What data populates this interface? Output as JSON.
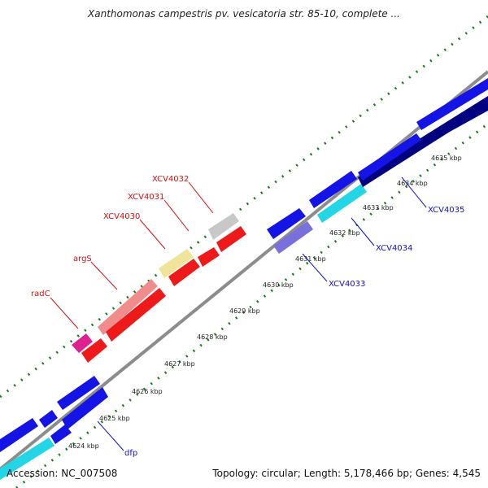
{
  "title": "Xanthomonas campestris pv. vesicatoria str. 85-10, complete ...",
  "footer": {
    "accession": "Accession: NC_007508",
    "summary": "Topology: circular; Length: 5,178,466 bp; Genes: 4,545"
  },
  "colors": {
    "backbone": "#8c8c8c",
    "tick": "#1a7a1a",
    "forward_label": "#d01010",
    "reverse_label": "#1010c8"
  },
  "ticks": [
    {
      "label": "4624 kbp"
    },
    {
      "label": "4625 kbp"
    },
    {
      "label": "4626 kbp"
    },
    {
      "label": "4627 kbp"
    },
    {
      "label": "4628 kbp"
    },
    {
      "label": "4629 kbp"
    },
    {
      "label": "4630 kbp"
    },
    {
      "label": "4631 kbp"
    },
    {
      "label": "4632 kbp"
    },
    {
      "label": "4633 kbp"
    },
    {
      "label": "4634 kbp"
    },
    {
      "label": "4635 kbp"
    }
  ],
  "gene_labels": [
    {
      "name": "radC",
      "strand": "forward"
    },
    {
      "name": "argS",
      "strand": "forward"
    },
    {
      "name": "XCV4030",
      "strand": "forward"
    },
    {
      "name": "XCV4031",
      "strand": "forward"
    },
    {
      "name": "XCV4032",
      "strand": "forward"
    },
    {
      "name": "XCV4033",
      "strand": "reverse"
    },
    {
      "name": "XCV4034",
      "strand": "reverse"
    },
    {
      "name": "XCV4035",
      "strand": "reverse"
    },
    {
      "name": "dfp",
      "strand": "reverse"
    }
  ]
}
